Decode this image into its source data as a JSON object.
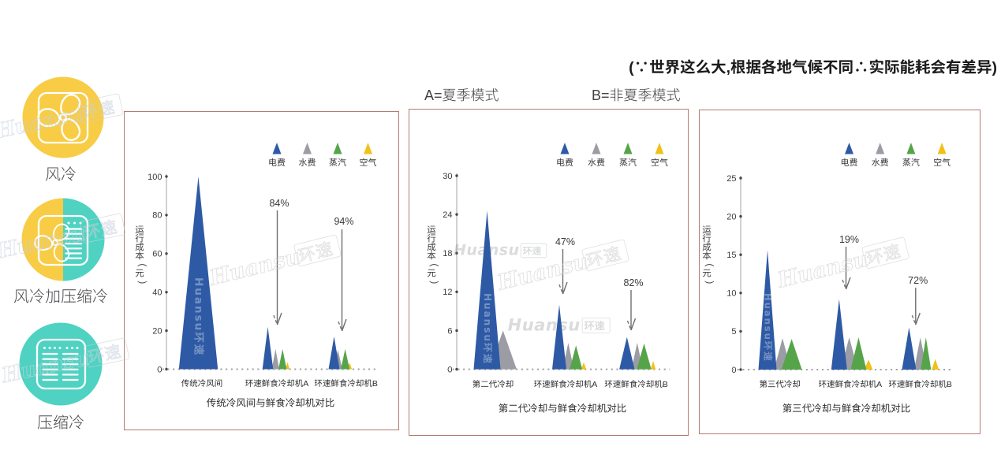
{
  "note": "(∵世界这么大,根据各地气候不同∴实际能耗会有差异)",
  "modes": {
    "a": "A=夏季模式",
    "b": "B=非夏季模式"
  },
  "brand": {
    "latin": "Huansu",
    "cjk": "环速"
  },
  "colors": {
    "electricity_blue": "#2e5aa5",
    "water_gray": "#9b9ca4",
    "steam_green": "#56a44a",
    "air_yellow": "#f1c119",
    "circle_yellow": "#f8cc45",
    "circle_teal": "#4fd2c2",
    "panel_border": "#b27c70"
  },
  "sidebar": {
    "items": [
      {
        "key": "air-cooling",
        "label": "风冷",
        "icon": "fan-icon"
      },
      {
        "key": "air-plus-compression-cooling",
        "label": "风冷加压缩冷",
        "icon": "fan-plus-compressor-icon"
      },
      {
        "key": "compression-cooling",
        "label": "压缩冷",
        "icon": "compressor-icon"
      }
    ]
  },
  "legend": {
    "items": [
      {
        "key": "electricity",
        "label": "电费",
        "color": "#2e5aa5"
      },
      {
        "key": "water",
        "label": "水费",
        "color": "#9b9ca4"
      },
      {
        "key": "steam",
        "label": "蒸汽",
        "color": "#56a44a"
      },
      {
        "key": "air",
        "label": "空气",
        "color": "#f1c119"
      }
    ]
  },
  "chart_data": [
    {
      "type": "area",
      "title": "传统冷风间与鲜食冷却机对比",
      "ylabel": "运行成本(元)",
      "ylim": [
        0,
        100
      ],
      "yticks": [
        0,
        20,
        40,
        60,
        80,
        100
      ],
      "categories": [
        "传统冷风间",
        "环速鲜食冷却机A",
        "环速鲜食冷却机B"
      ],
      "series": [
        {
          "key": "electricity",
          "name": "电费",
          "values": [
            100,
            22,
            17
          ]
        },
        {
          "key": "water",
          "name": "水费",
          "values": [
            null,
            10.5,
            10
          ]
        },
        {
          "key": "steam",
          "name": "蒸汽",
          "values": [
            null,
            10.5,
            10.5
          ]
        },
        {
          "key": "air",
          "name": "空气",
          "values": [
            null,
            3.7,
            3.4
          ]
        }
      ],
      "annotations": [
        {
          "category": "环速鲜食冷却机A",
          "text": "84%"
        },
        {
          "category": "环速鲜食冷却机B",
          "text": "94%"
        }
      ]
    },
    {
      "type": "area",
      "title": "第二代冷却与鲜食冷却机对比",
      "ylabel": "运行成本(元)",
      "ylim": [
        0,
        30
      ],
      "yticks": [
        0,
        6,
        12,
        18,
        24,
        30
      ],
      "categories": [
        "第二代冷却",
        "环速鲜食冷却机A",
        "环速鲜食冷却机B"
      ],
      "series": [
        {
          "key": "electricity",
          "name": "电费",
          "values": [
            24.6,
            10,
            5
          ]
        },
        {
          "key": "water",
          "name": "水费",
          "values": [
            6,
            4.1,
            4.1
          ]
        },
        {
          "key": "steam",
          "name": "蒸汽",
          "values": [
            null,
            3.7,
            4
          ]
        },
        {
          "key": "air",
          "name": "空气",
          "values": [
            null,
            1.1,
            1.3
          ]
        }
      ],
      "annotations": [
        {
          "category": "环速鲜食冷却机A",
          "text": "47%"
        },
        {
          "category": "环速鲜食冷却机B",
          "text": "82%"
        }
      ]
    },
    {
      "type": "area",
      "title": "第三代冷却与鲜食冷却机对比",
      "ylabel": "运行成本(元)",
      "ylim": [
        0,
        25
      ],
      "yticks": [
        0,
        5,
        10,
        15,
        20,
        25
      ],
      "categories": [
        "第三代冷却",
        "环速鲜食冷却机A",
        "环速鲜食冷却机B"
      ],
      "series": [
        {
          "key": "electricity",
          "name": "电费",
          "values": [
            15.6,
            9.2,
            5.5
          ]
        },
        {
          "key": "water",
          "name": "水费",
          "values": [
            4.1,
            4.2,
            4.2
          ]
        },
        {
          "key": "steam",
          "name": "蒸汽",
          "values": [
            4.0,
            4.2,
            4.2
          ]
        },
        {
          "key": "air",
          "name": "空气",
          "values": [
            null,
            1.3,
            1.4
          ]
        }
      ],
      "annotations": [
        {
          "category": "环速鲜食冷却机A",
          "text": "19%"
        },
        {
          "category": "环速鲜食冷却机B",
          "text": "72%"
        }
      ]
    }
  ]
}
